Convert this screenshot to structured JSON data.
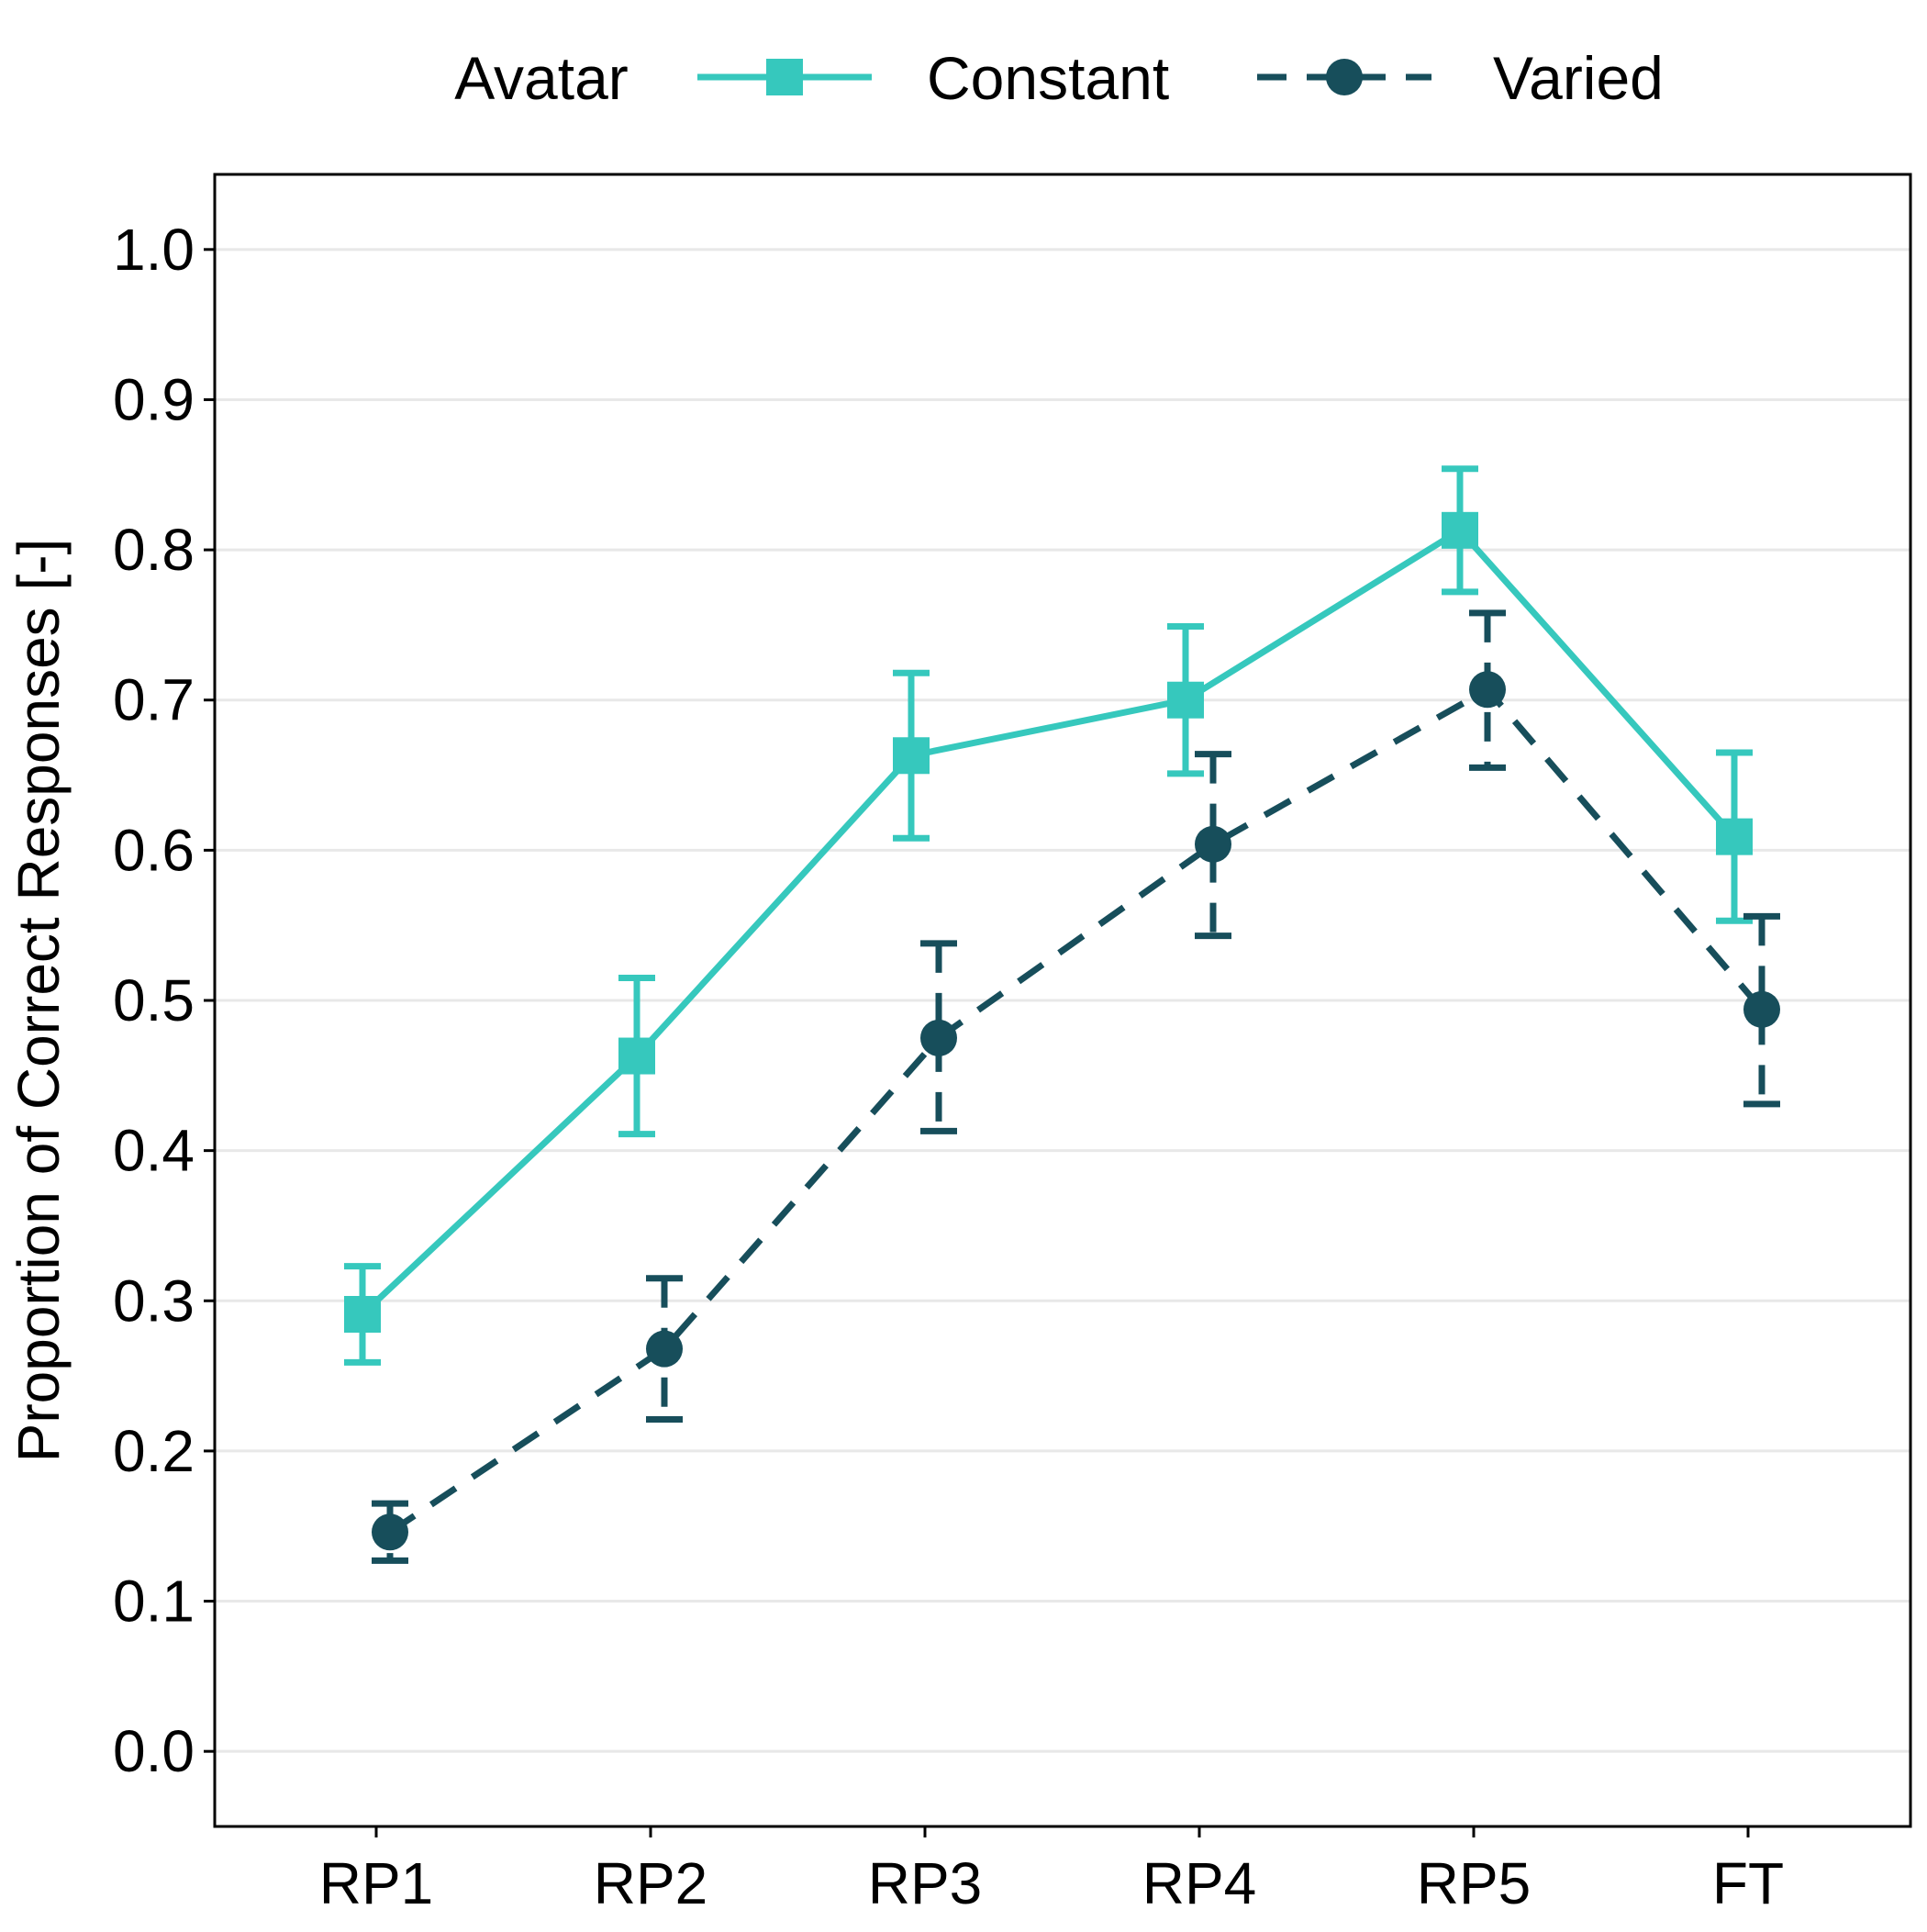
{
  "colors": {
    "constant": "#36c8bd",
    "varied": "#174e5b",
    "grid": "#e8e8e8",
    "axis": "#000000",
    "background": "#ffffff"
  },
  "legend": {
    "title": "Avatar",
    "entries": [
      "Constant",
      "Varied"
    ],
    "placement": "top"
  },
  "chart_data": {
    "type": "line",
    "title": "",
    "xlabel": "",
    "ylabel": "Proportion of Correct Responses [-]",
    "categories": [
      "RP1",
      "RP2",
      "RP3",
      "RP4",
      "RP5",
      "FT"
    ],
    "ylim": [
      -0.05,
      1.05
    ],
    "yticks": [
      0.0,
      0.1,
      0.2,
      0.3,
      0.4,
      0.5,
      0.6,
      0.7,
      0.8,
      0.9,
      1.0
    ],
    "ytick_labels": [
      "0.0",
      "0.1",
      "0.2",
      "0.3",
      "0.4",
      "0.5",
      "0.6",
      "0.7",
      "0.8",
      "0.9",
      "1.0"
    ],
    "grid": true,
    "series": [
      {
        "name": "Constant",
        "marker": "square",
        "linestyle": "solid",
        "values": [
          0.291,
          0.463,
          0.663,
          0.7,
          0.813,
          0.609
        ],
        "error_lower": [
          0.259,
          0.411,
          0.608,
          0.651,
          0.772,
          0.553
        ],
        "error_upper": [
          0.323,
          0.515,
          0.718,
          0.749,
          0.854,
          0.665
        ]
      },
      {
        "name": "Varied",
        "marker": "circle",
        "linestyle": "dashed",
        "values": [
          0.146,
          0.268,
          0.475,
          0.604,
          0.707,
          0.494
        ],
        "error_lower": [
          0.127,
          0.221,
          0.413,
          0.543,
          0.655,
          0.431
        ],
        "error_upper": [
          0.165,
          0.315,
          0.538,
          0.664,
          0.758,
          0.556
        ]
      }
    ]
  }
}
